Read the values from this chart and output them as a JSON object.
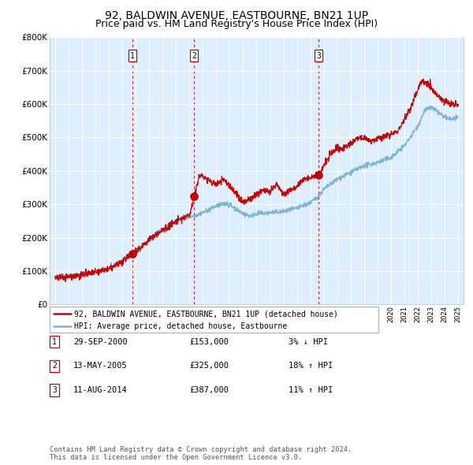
{
  "title": "92, BALDWIN AVENUE, EASTBOURNE, BN21 1UP",
  "subtitle": "Price paid vs. HM Land Registry's House Price Index (HPI)",
  "ylim": [
    0,
    800000
  ],
  "yticks": [
    0,
    100000,
    200000,
    300000,
    400000,
    500000,
    600000,
    700000,
    800000
  ],
  "x_start_year": 1995,
  "x_end_year": 2025,
  "sale_points": [
    {
      "year": 2000.75,
      "value": 153000,
      "label": "1"
    },
    {
      "year": 2005.36,
      "value": 325000,
      "label": "2"
    },
    {
      "year": 2014.61,
      "value": 387000,
      "label": "3"
    }
  ],
  "vline_years": [
    2000.75,
    2005.36,
    2014.61
  ],
  "box_labels": [
    {
      "label": "1",
      "year": 2000.75
    },
    {
      "label": "2",
      "year": 2005.36
    },
    {
      "label": "3",
      "year": 2014.61
    }
  ],
  "hpi_color": "#7ab3d4",
  "price_color": "#cc0000",
  "sale_dot_color": "#cc0000",
  "vline_color": "#cc0000",
  "bg_color": "#ddeeff",
  "grid_color": "#ffffff",
  "legend_price_label": "92, BALDWIN AVENUE, EASTBOURNE, BN21 1UP (detached house)",
  "legend_hpi_label": "HPI: Average price, detached house, Eastbourne",
  "table_rows": [
    {
      "num": "1",
      "date": "29-SEP-2000",
      "price": "£153,000",
      "change": "3% ↓ HPI"
    },
    {
      "num": "2",
      "date": "13-MAY-2005",
      "price": "£325,000",
      "change": "18% ↑ HPI"
    },
    {
      "num": "3",
      "date": "11-AUG-2014",
      "price": "£387,000",
      "change": "11% ↑ HPI"
    }
  ],
  "footnote": "Contains HM Land Registry data © Crown copyright and database right 2024.\nThis data is licensed under the Open Government Licence v3.0.",
  "title_fontsize": 10,
  "subtitle_fontsize": 9
}
